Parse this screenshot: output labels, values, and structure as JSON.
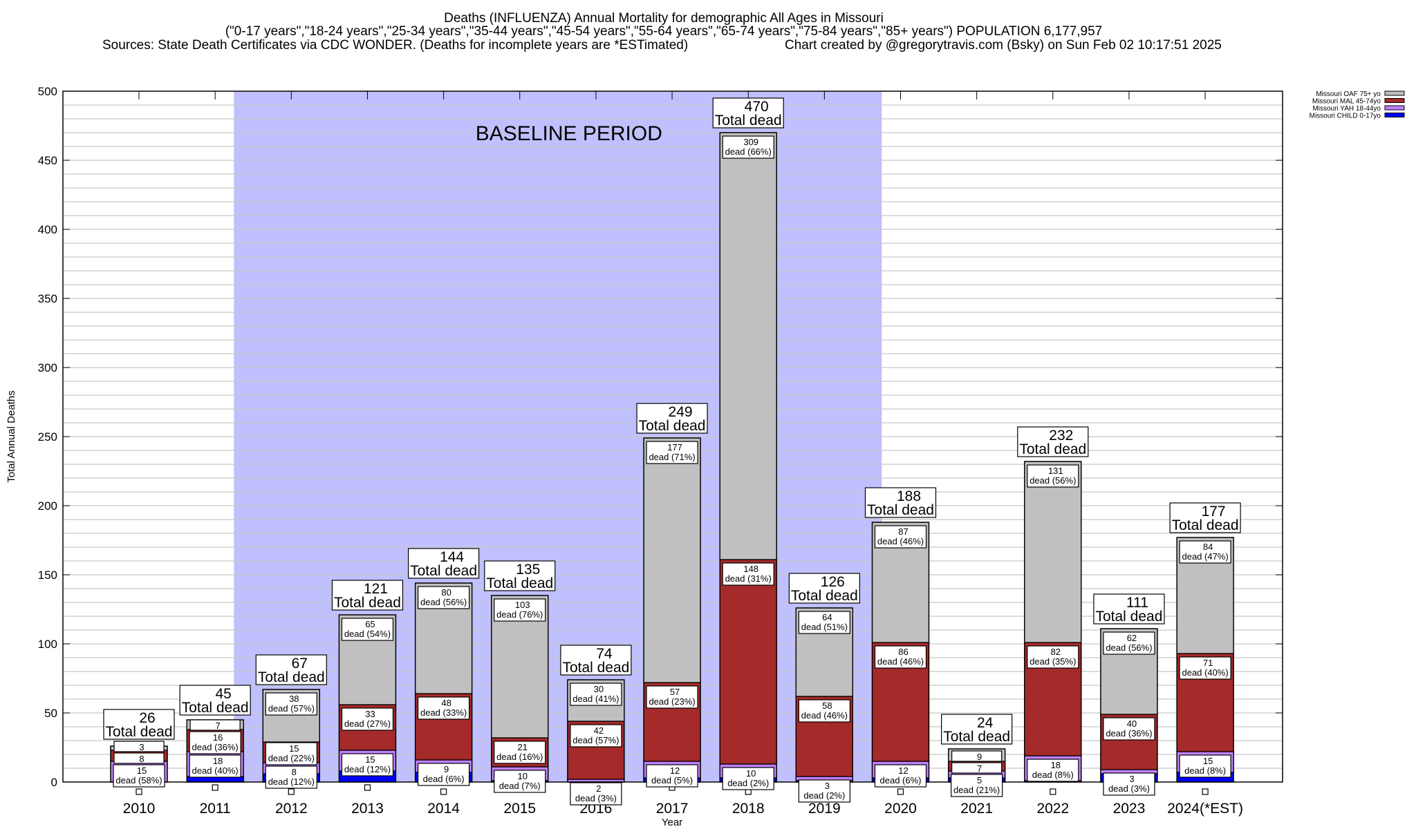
{
  "header": {
    "title": "Deaths (INFLUENZA) Annual Mortality for demographic All Ages in Missouri",
    "subtitle": "(\"0-17 years\",\"18-24 years\",\"25-34 years\",\"35-44 years\",\"45-54 years\",\"55-64 years\",\"65-74 years\",\"75-84 years\",\"85+ years\") POPULATION 6,177,957",
    "sources": "Sources: State Death Certificates via CDC WONDER. (Deaths for incomplete years are *ESTimated)",
    "credit": "Chart created by @gregorytravis.com (Bsky) on Sun Feb 02 10:17:51 2025"
  },
  "chart_data": {
    "type": "bar",
    "stacked": true,
    "title": "Deaths (INFLUENZA) Annual Mortality for demographic All Ages in Missouri",
    "xlabel": "Year",
    "ylabel": "Total Annual Deaths",
    "ylim": [
      0,
      500
    ],
    "yticks": [
      0,
      50,
      100,
      150,
      200,
      250,
      300,
      350,
      400,
      450,
      500
    ],
    "grid": true,
    "legend_position": "right",
    "categories": [
      "2010",
      "2011",
      "2012",
      "2013",
      "2014",
      "2015",
      "2016",
      "2017",
      "2018",
      "2019",
      "2020",
      "2021",
      "2022",
      "2023",
      "2024(*EST)"
    ],
    "totals": [
      26,
      45,
      67,
      121,
      144,
      135,
      74,
      249,
      470,
      126,
      188,
      24,
      232,
      111,
      177
    ],
    "total_label": "Total dead",
    "dead_word": "dead",
    "baseline": {
      "label": "BASELINE PERIOD",
      "from": "2012",
      "to": "2019",
      "color": "#c0c0ff"
    },
    "series": [
      {
        "name": "Missouri CHILD 0-17yo",
        "color": "#0000ff",
        "values": [
          0,
          4,
          6,
          8,
          7,
          1,
          0,
          3,
          3,
          1,
          3,
          3,
          1,
          6,
          7
        ],
        "pct": [
          "",
          "",
          "",
          "",
          "",
          "",
          "",
          "",
          "",
          "",
          "",
          "",
          "",
          "",
          ""
        ]
      },
      {
        "name": "Missouri YAH 18-44yo",
        "color": "#c080ff",
        "values": [
          15,
          18,
          8,
          15,
          9,
          10,
          2,
          12,
          10,
          3,
          12,
          5,
          18,
          3,
          15
        ],
        "pct": [
          "58",
          "40",
          "12",
          "12",
          "6",
          "7",
          "3",
          "5",
          "2",
          "2",
          "6",
          "21",
          "8",
          "3",
          "8"
        ]
      },
      {
        "name": "Missouri MAL 45-74yo",
        "color": "#a52a2a",
        "values": [
          8,
          16,
          15,
          33,
          48,
          21,
          42,
          57,
          148,
          58,
          86,
          7,
          82,
          40,
          71
        ],
        "pct": [
          "",
          "36",
          "22",
          "27",
          "33",
          "16",
          "57",
          "23",
          "31",
          "46",
          "46",
          "",
          "35",
          "36",
          "40"
        ]
      },
      {
        "name": "Missouri OAF 75+ yo",
        "color": "#c0c0c0",
        "values": [
          3,
          7,
          38,
          65,
          80,
          103,
          30,
          177,
          309,
          64,
          87,
          9,
          131,
          62,
          84
        ],
        "pct": [
          "",
          "",
          "57",
          "54",
          "56",
          "76",
          "41",
          "71",
          "66",
          "51",
          "46",
          "",
          "56",
          "56",
          "47"
        ]
      }
    ]
  }
}
